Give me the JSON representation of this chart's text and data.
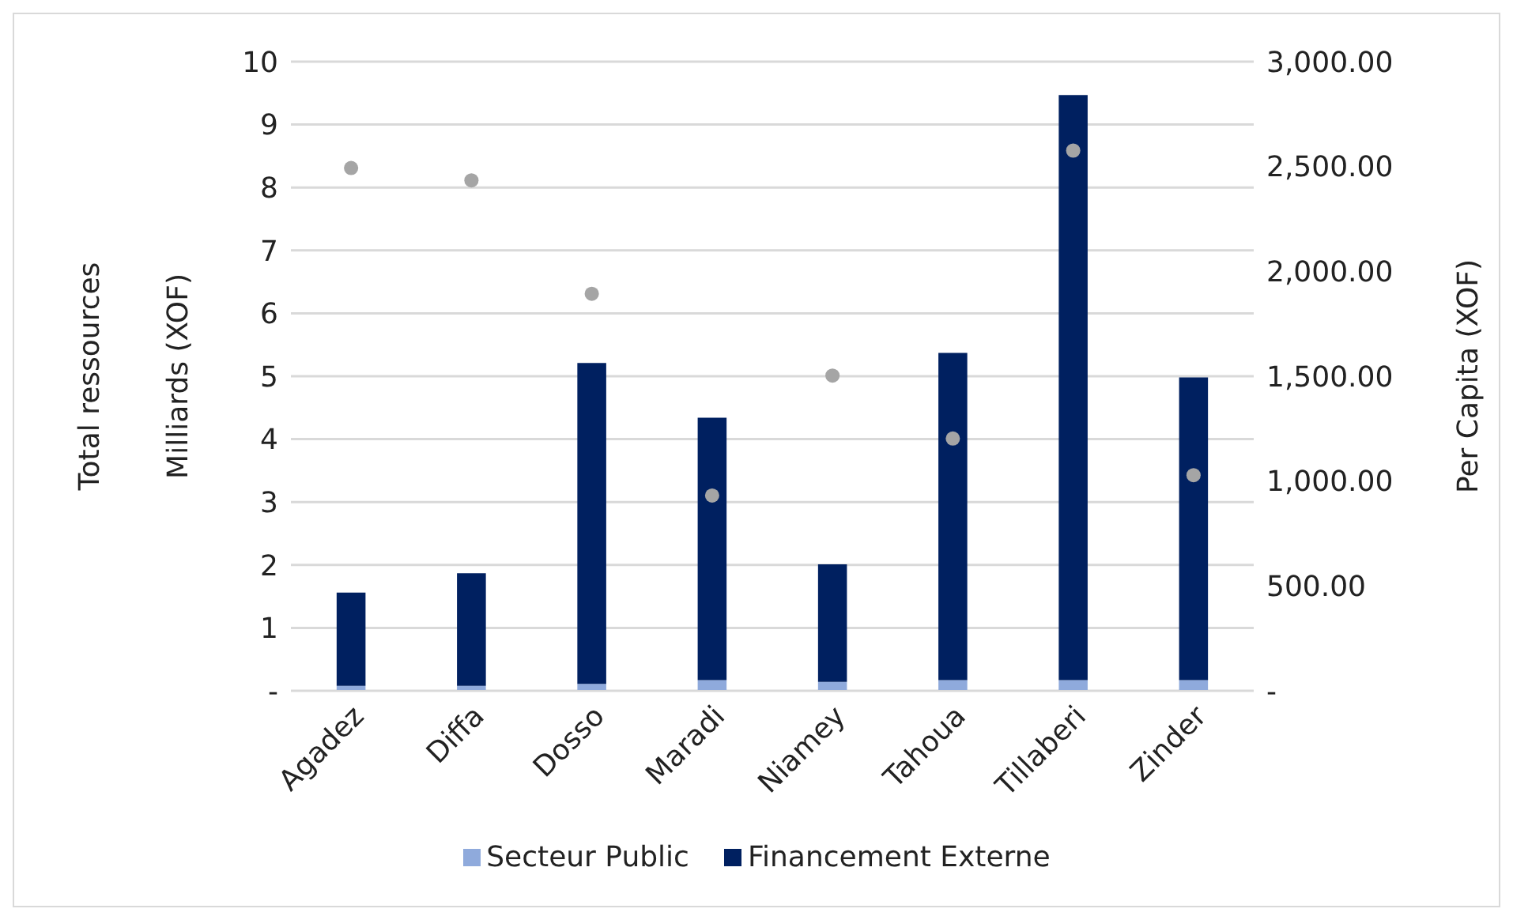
{
  "chart_data": {
    "type": "bar",
    "stacked": true,
    "ylabel": "Total ressources\nMilliards (XOF)",
    "y2label": "Per Capita (XOF)",
    "categories": [
      "Agadez",
      "Diffa",
      "Dosso",
      "Maradi",
      "Niamey",
      "Tahoua",
      "Tillaberi",
      "Zinder"
    ],
    "series": [
      {
        "name": "Secteur Public",
        "color": "#8faadc",
        "values": [
          0.08,
          0.08,
          0.11,
          0.17,
          0.14,
          0.17,
          0.17,
          0.17
        ]
      },
      {
        "name": "Financement Externe",
        "color": "#002060",
        "values": [
          1.48,
          1.79,
          5.1,
          4.17,
          1.87,
          5.2,
          9.3,
          4.81
        ]
      },
      {
        "type": "scatter",
        "axis": "y2",
        "color": "#a5a5a5",
        "marker": "circle",
        "values": [
          2493,
          2434,
          1893,
          931,
          1503,
          1203,
          2576,
          1028
        ]
      }
    ],
    "ylim": [
      0,
      10
    ],
    "yticks": [
      {
        "value": 0,
        "label": "-"
      },
      1,
      2,
      3,
      4,
      5,
      6,
      7,
      8,
      9,
      10
    ],
    "y2lim": [
      0,
      3000
    ],
    "y2ticks": [
      {
        "value": 0,
        "label": "-"
      },
      {
        "value": 500,
        "label": "500.00"
      },
      {
        "value": 1000,
        "label": "1,000.00"
      },
      {
        "value": 1500,
        "label": "1,500.00"
      },
      {
        "value": 2000,
        "label": "2,000.00"
      },
      {
        "value": 2500,
        "label": "2,500.00"
      },
      {
        "value": 3000,
        "label": "3,000.00"
      }
    ],
    "grid": "y",
    "legend": "bottom"
  }
}
